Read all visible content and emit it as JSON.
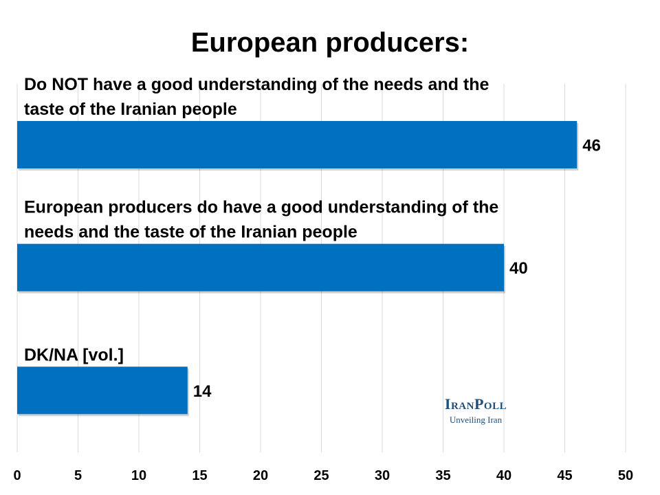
{
  "chart_data": {
    "type": "bar",
    "orientation": "horizontal",
    "title": "European producers:",
    "categories": [
      [
        "Do NOT have a good understanding of the needs and the",
        "taste of the Iranian people"
      ],
      [
        "European producers do have a good understanding of the",
        "needs and the taste of the Iranian people"
      ],
      [
        "DK/NA [vol.]"
      ]
    ],
    "values": [
      46,
      40,
      14
    ],
    "data_labels": [
      "46",
      "40",
      "14"
    ],
    "xlim": [
      0,
      50
    ],
    "xticks": [
      0,
      5,
      10,
      15,
      20,
      25,
      30,
      35,
      40,
      45,
      50
    ],
    "grid": true,
    "bar_color": "#0070c0",
    "grid_color": "#d9d9d9"
  },
  "logo": {
    "name": "IranPoll",
    "tagline": "Unveiling Iran"
  }
}
